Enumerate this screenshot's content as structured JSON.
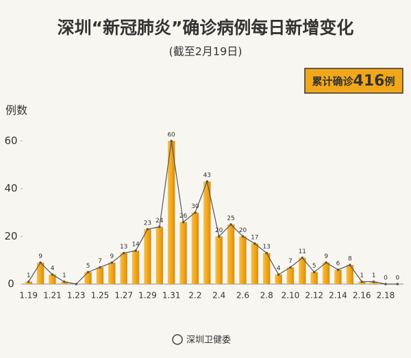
{
  "chart_data": {
    "type": "bar",
    "title": "深圳“新冠肺炎”确诊病例每日新增变化",
    "subtitle": "(截至2月19日)",
    "badge": {
      "prefix": "累计确诊",
      "number": "416",
      "suffix": "例"
    },
    "y_label": "例数",
    "source": "深圳卫健委",
    "categories": [
      "1.19",
      null,
      "1.21",
      null,
      "1.23",
      null,
      "1.25",
      null,
      "1.27",
      null,
      "1.29",
      null,
      "1.31",
      null,
      "2.2",
      null,
      "2.4",
      null,
      "2.6",
      null,
      "2.8",
      null,
      "2.10",
      null,
      "2.12",
      null,
      "2.14",
      null,
      "2.16",
      null,
      "2.18",
      null
    ],
    "values": [
      1,
      9,
      4,
      1,
      0,
      5,
      7,
      9,
      13,
      14,
      23,
      24,
      60,
      26,
      30,
      43,
      20,
      25,
      20,
      17,
      13,
      4,
      7,
      11,
      5,
      9,
      6,
      8,
      1,
      1,
      0,
      0
    ],
    "value_labels": [
      "1",
      "9",
      "4",
      "1",
      null,
      "5",
      "7",
      "9",
      "13",
      "14",
      "23",
      "24",
      "60",
      "26",
      "30",
      "43",
      "20",
      "25",
      "20",
      "17",
      "13",
      "4",
      "7",
      "11",
      "5",
      "9",
      "6",
      "8",
      "1",
      "1",
      "0",
      "0"
    ],
    "color": "#f2a71b",
    "line_color": "#555555",
    "ylim": [
      0,
      65
    ],
    "yticks": [
      0,
      20,
      40,
      60
    ]
  }
}
